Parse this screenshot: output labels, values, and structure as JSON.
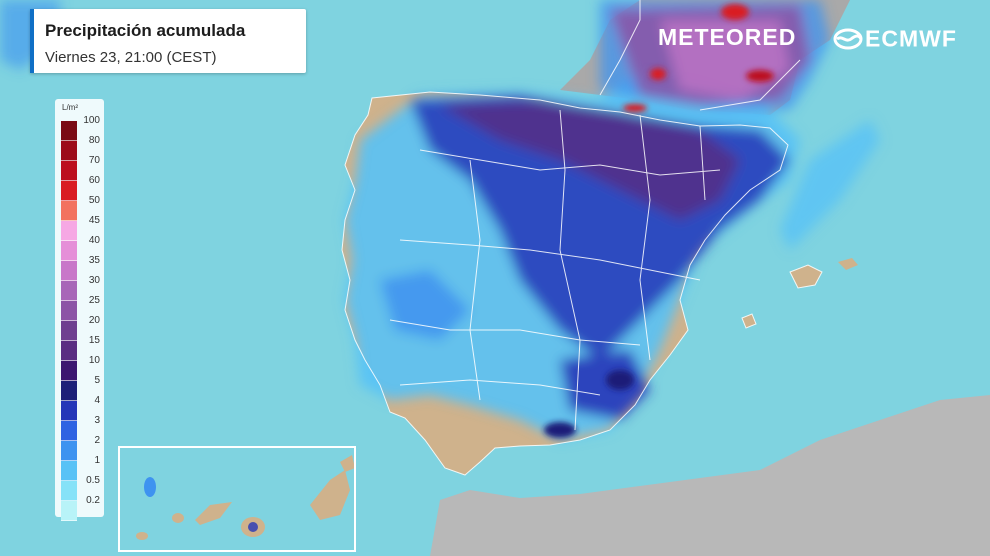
{
  "header": {
    "title": "Precipitación acumulada",
    "subtitle": "Viernes 23, 21:00 (CEST)"
  },
  "brand": {
    "meteored": "METEORED",
    "ecmwf": "ECMWF"
  },
  "legend": {
    "unit": "L/m²",
    "ticks": [
      "100",
      "80",
      "70",
      "60",
      "50",
      "45",
      "40",
      "35",
      "30",
      "25",
      "20",
      "15",
      "10",
      "5",
      "4",
      "3",
      "2",
      "1",
      "0.5",
      "0.2"
    ],
    "colors": [
      "#7a0a14",
      "#9c0c1a",
      "#bc0f1e",
      "#d91c22",
      "#f2725f",
      "#f6a8e4",
      "#e58fd8",
      "#c877c9",
      "#a866b8",
      "#8c54a6",
      "#6f3f90",
      "#5a2d82",
      "#3c1670",
      "#1d1f78",
      "#2536b8",
      "#2f63e2",
      "#3e93f0",
      "#58c2f6",
      "#86e2f8",
      "#b8f3f8"
    ]
  },
  "colors": {
    "sea": "#7fd3e0",
    "land": "#cfb28c",
    "africa": "#b8b8b8",
    "france": "#a9a9a9",
    "title_accent": "#0f6fc6"
  }
}
